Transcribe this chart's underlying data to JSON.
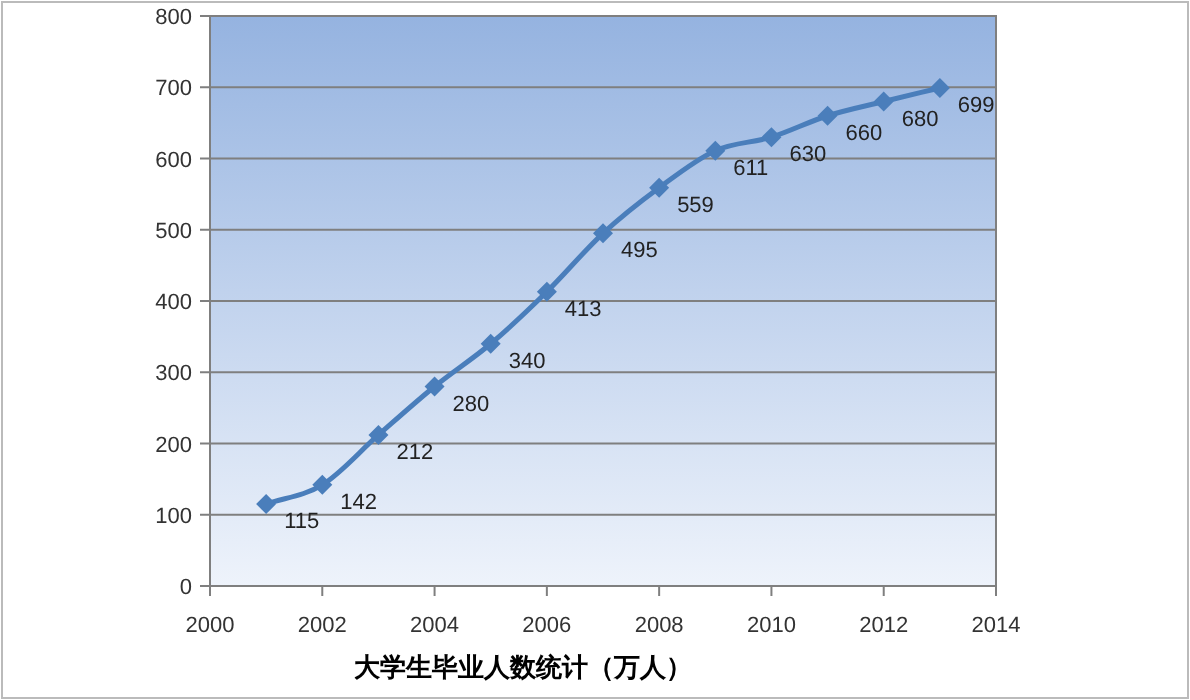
{
  "chart_data": {
    "type": "line",
    "xlabel": "大学生毕业人数统计（万人）",
    "x": [
      2001,
      2002,
      2003,
      2004,
      2005,
      2006,
      2007,
      2008,
      2009,
      2010,
      2011,
      2012,
      2013
    ],
    "series": [
      {
        "color": "#4a7ebb",
        "values": [
          115,
          142,
          212,
          280,
          340,
          413,
          495,
          559,
          611,
          630,
          660,
          680,
          699
        ]
      }
    ],
    "xlim": [
      2000,
      2014
    ],
    "xticks": [
      2000,
      2002,
      2004,
      2006,
      2008,
      2010,
      2012,
      2014
    ],
    "ylim": [
      0,
      800
    ],
    "yticks": [
      0,
      100,
      200,
      300,
      400,
      500,
      600,
      700,
      800
    ],
    "grid": "y",
    "marker": "diamond",
    "data_labels": true
  }
}
